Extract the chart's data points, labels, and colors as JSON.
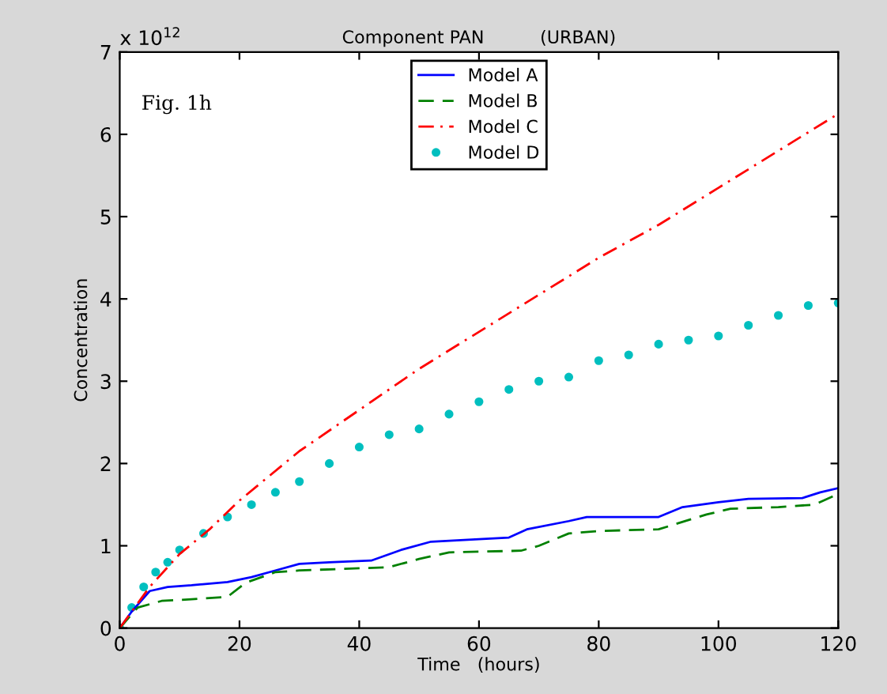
{
  "chart_data": {
    "type": "line",
    "title": "Component PAN          (URBAN)",
    "xlabel": "Time   (hours)",
    "ylabel": "Concentration",
    "annotations": [
      "Fig. 1h",
      "x 10$^{12}$"
    ],
    "xlim": [
      0,
      120
    ],
    "xticks": [
      0,
      20,
      40,
      60,
      80,
      100,
      120
    ],
    "ylim": [
      0,
      7
    ],
    "yticks": [
      0,
      1,
      2,
      3,
      4,
      5,
      6,
      7
    ],
    "grid": false,
    "legend": "top",
    "series": [
      {
        "name": "Model A",
        "color": "#0000ff",
        "line_style": "solid",
        "x": [
          0,
          2,
          5,
          8,
          12,
          18,
          22,
          26,
          30,
          35,
          42,
          47,
          52,
          60,
          65,
          68,
          75,
          78,
          90,
          94,
          100,
          105,
          114,
          117,
          120
        ],
        "values": [
          0,
          0.2,
          0.45,
          0.5,
          0.52,
          0.56,
          0.62,
          0.7,
          0.78,
          0.8,
          0.82,
          0.95,
          1.05,
          1.08,
          1.1,
          1.2,
          1.3,
          1.35,
          1.35,
          1.47,
          1.53,
          1.57,
          1.58,
          1.65,
          1.7
        ]
      },
      {
        "name": "Model B",
        "color": "#008000",
        "line_style": "dashed",
        "x": [
          0,
          3,
          7,
          12,
          18,
          21,
          26,
          30,
          45,
          50,
          55,
          67,
          70,
          75,
          80,
          90,
          98,
          102,
          110,
          116,
          120
        ],
        "values": [
          0,
          0.25,
          0.33,
          0.35,
          0.38,
          0.55,
          0.68,
          0.7,
          0.74,
          0.84,
          0.92,
          0.94,
          1.0,
          1.15,
          1.18,
          1.2,
          1.38,
          1.45,
          1.47,
          1.5,
          1.63
        ]
      },
      {
        "name": "Model C",
        "color": "#ff0000",
        "line_style": "dashdot",
        "x": [
          0,
          5,
          10,
          15,
          20,
          30,
          40,
          50,
          60,
          70,
          80,
          90,
          100,
          110,
          120
        ],
        "values": [
          0,
          0.5,
          0.9,
          1.2,
          1.55,
          2.15,
          2.65,
          3.15,
          3.6,
          4.05,
          4.5,
          4.9,
          5.35,
          5.8,
          6.25
        ]
      },
      {
        "name": "Model D",
        "color": "#00bfbf",
        "type": "scatter",
        "marker": "circle",
        "x": [
          0,
          2,
          4,
          6,
          8,
          10,
          14,
          18,
          22,
          26,
          30,
          35,
          40,
          45,
          50,
          55,
          60,
          65,
          70,
          75,
          80,
          85,
          90,
          95,
          100,
          105,
          110,
          115,
          120
        ],
        "values": [
          0,
          0.25,
          0.5,
          0.68,
          0.8,
          0.95,
          1.15,
          1.35,
          1.5,
          1.65,
          1.78,
          2.0,
          2.2,
          2.35,
          2.42,
          2.6,
          2.75,
          2.9,
          3.0,
          3.05,
          3.25,
          3.32,
          3.45,
          3.5,
          3.55,
          3.68,
          3.8,
          3.92,
          3.95
        ]
      }
    ]
  }
}
